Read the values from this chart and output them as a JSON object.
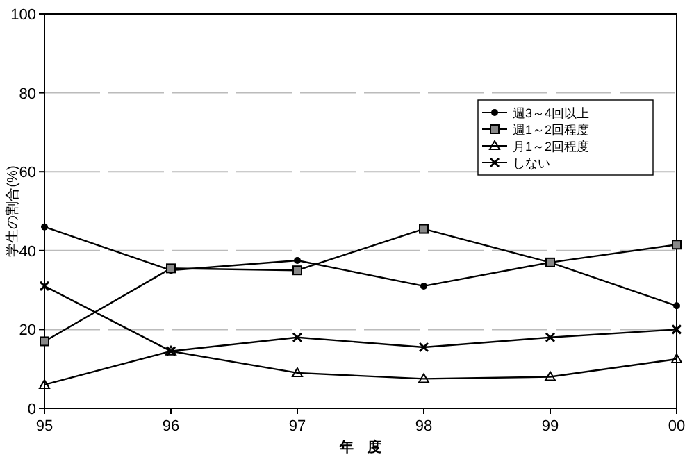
{
  "chart_data": {
    "type": "line",
    "xlabel": "年　度",
    "ylabel": "学生の割合(%)",
    "categories": [
      "95",
      "96",
      "97",
      "98",
      "99",
      "00"
    ],
    "series": [
      {
        "name": "週3～4回以上",
        "color": "#000000",
        "marker": "circle",
        "values": [
          46,
          35,
          37.5,
          31,
          37,
          26
        ]
      },
      {
        "name": "週1～2回程度",
        "color": "#000000",
        "marker": "square",
        "values": [
          17,
          35.5,
          35,
          45.5,
          37,
          41.5
        ]
      },
      {
        "name": "月1～2回程度",
        "color": "#000000",
        "marker": "triangle",
        "values": [
          6,
          14.5,
          9,
          7.5,
          8,
          12.5
        ]
      },
      {
        "name": "しない",
        "color": "#000000",
        "marker": "cross",
        "values": [
          31,
          14.5,
          18,
          15.5,
          18,
          20
        ]
      }
    ],
    "ylim": [
      0,
      100
    ],
    "yticks": [
      0,
      20,
      40,
      60,
      80,
      100
    ],
    "grid": "y",
    "legend": "top right",
    "line_style": "solid"
  }
}
